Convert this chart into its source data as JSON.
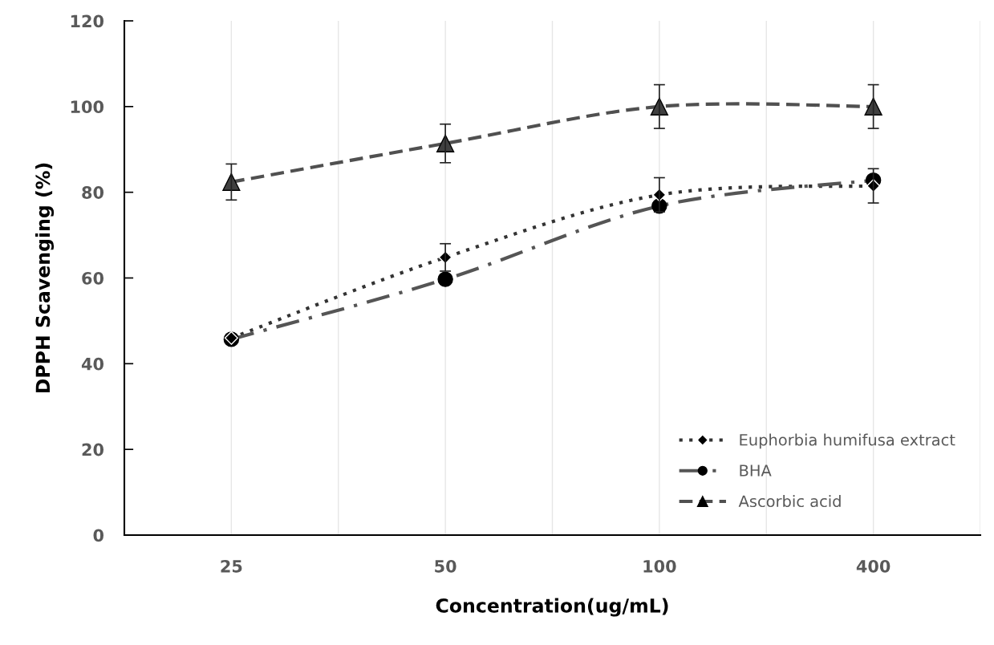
{
  "chart_data": {
    "type": "line",
    "xlabel": "Concentration(ug/mL)",
    "ylabel": "DPPH Scavenging (%)",
    "categories": [
      "25",
      "50",
      "100",
      "400"
    ],
    "series": [
      {
        "name": "Euphorbia humifusa extract",
        "color": "#333333",
        "values": [
          46,
          64.8,
          79.4,
          81.5
        ],
        "errors": [
          null,
          3.2,
          4,
          4
        ],
        "marker": "diamond",
        "line_style": "dotted"
      },
      {
        "name": "BHA",
        "color": "#555555",
        "values": [
          45.7,
          59.7,
          76.8,
          82.8
        ],
        "marker": "circle",
        "line_style": "dashdot"
      },
      {
        "name": "Ascorbic acid",
        "color": "#505050",
        "values": [
          82.4,
          91.4,
          100,
          100
        ],
        "errors": [
          4.2,
          4.5,
          5.1,
          5.1
        ],
        "marker": "triangle",
        "line_style": "dashed"
      }
    ],
    "ylim": [
      0,
      120
    ],
    "yticks": [
      0,
      20,
      40,
      60,
      80,
      100,
      120
    ],
    "grid": "x",
    "legend": "bottom right"
  }
}
